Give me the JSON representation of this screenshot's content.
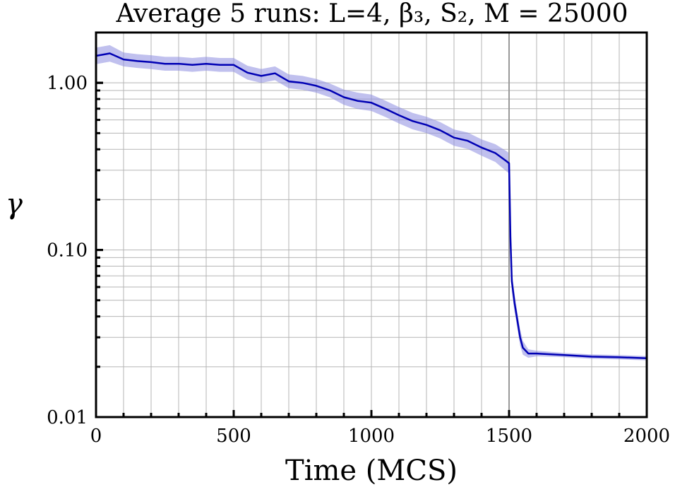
{
  "chart_data": {
    "type": "line",
    "title": "Average 5 runs: L=4, β₃, S₂, M = 25000",
    "xlabel": "Time (MCS)",
    "ylabel": "γ",
    "xlim": [
      0,
      2000
    ],
    "ylim": [
      0.01,
      2.0
    ],
    "yscale": "log",
    "grid": true,
    "x_ticks": [
      {
        "value": 0,
        "label": "0"
      },
      {
        "value": 500,
        "label": "500"
      },
      {
        "value": 1000,
        "label": "1000"
      },
      {
        "value": 1500,
        "label": "1500"
      },
      {
        "value": 2000,
        "label": "2000"
      }
    ],
    "y_ticks": [
      {
        "value": 1.0,
        "label": "1.00"
      },
      {
        "value": 0.1,
        "label": "0.10"
      },
      {
        "value": 0.01,
        "label": "0.01"
      }
    ],
    "vline": {
      "x": 1500
    },
    "series": [
      {
        "color": "#0000b4",
        "band_color": "#8c8ce0",
        "x": [
          0,
          50,
          100,
          150,
          200,
          250,
          300,
          350,
          400,
          450,
          500,
          550,
          600,
          650,
          700,
          750,
          800,
          850,
          900,
          950,
          1000,
          1050,
          1100,
          1150,
          1200,
          1250,
          1300,
          1350,
          1400,
          1450,
          1490,
          1500,
          1505,
          1510,
          1520,
          1530,
          1540,
          1550,
          1570,
          1600,
          1700,
          1800,
          1900,
          2000
        ],
        "y": [
          1.45,
          1.5,
          1.38,
          1.35,
          1.33,
          1.3,
          1.3,
          1.28,
          1.3,
          1.28,
          1.28,
          1.15,
          1.1,
          1.14,
          1.02,
          1.0,
          0.96,
          0.9,
          0.82,
          0.78,
          0.76,
          0.7,
          0.64,
          0.59,
          0.56,
          0.52,
          0.47,
          0.45,
          0.41,
          0.38,
          0.34,
          0.33,
          0.12,
          0.065,
          0.048,
          0.038,
          0.03,
          0.026,
          0.024,
          0.024,
          0.0235,
          0.023,
          0.0228,
          0.0225
        ],
        "band": [
          0.12,
          0.12,
          0.1,
          0.1,
          0.1,
          0.1,
          0.1,
          0.1,
          0.1,
          0.1,
          0.1,
          0.1,
          0.1,
          0.1,
          0.1,
          0.1,
          0.1,
          0.1,
          0.11,
          0.12,
          0.12,
          0.12,
          0.12,
          0.12,
          0.12,
          0.12,
          0.12,
          0.12,
          0.12,
          0.13,
          0.15,
          0.15,
          0.15,
          0.15,
          0.13,
          0.12,
          0.12,
          0.1,
          0.06,
          0.04,
          0.03,
          0.03,
          0.03,
          0.03
        ]
      }
    ]
  }
}
